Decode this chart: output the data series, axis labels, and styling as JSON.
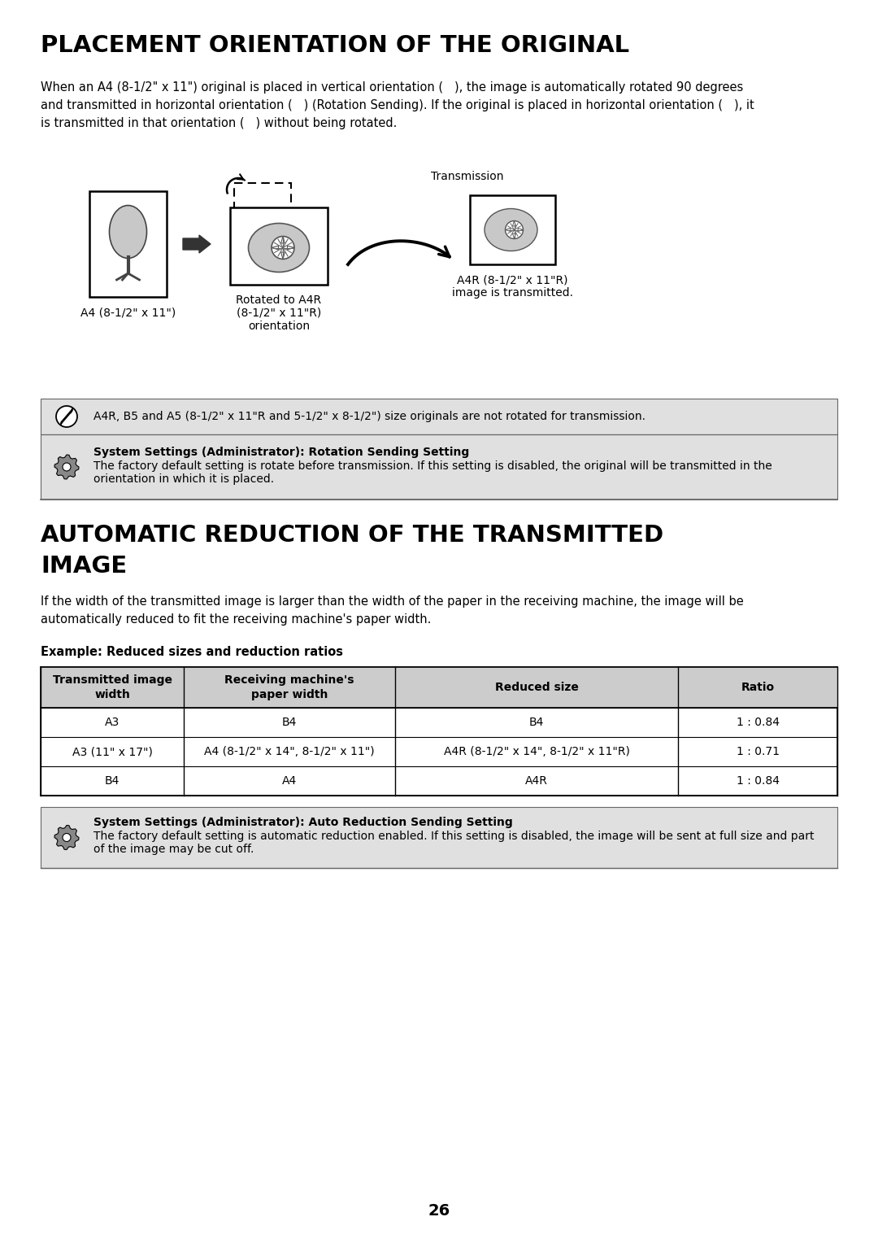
{
  "page_bg": "#ffffff",
  "page_num": "26",
  "section1_title": "PLACEMENT ORIENTATION OF THE ORIGINAL",
  "section1_body_line1": "When an A4 (8-1/2\" x 11\") original is placed in vertical orientation (▤), the image is automatically rotated 90 degrees",
  "section1_body_line2": "and transmitted in horizontal orientation (▤▤) (Rotation Sending). If the original is placed in horizontal orientation (▤▤), it",
  "section1_body_line3": "is transmitted in that orientation (▤▤) without being rotated.",
  "section1_body": "When an A4 (8-1/2\" x 11\") original is placed in vertical orientation (   ), the image is automatically rotated 90 degrees\nand transmitted in horizontal orientation (   ) (Rotation Sending). If the original is placed in horizontal orientation (   ), it\nis transmitted in that orientation (   ) without being rotated.",
  "diagram_label_transmission": "Transmission",
  "diagram_label1": "A4 (8-1/2\" x 11\")",
  "diagram_label2_line1": "Rotated to A4R",
  "diagram_label2_line2": "(8-1/2\" x 11\"R)",
  "diagram_label2_line3": "orientation",
  "diagram_label3_line1": "A4R (8-1/2\" x 11\"R)",
  "diagram_label3_line2": "image is transmitted.",
  "note1_text": "A4R, B5 and A5 (8-1/2\" x 11\"R and 5-1/2\" x 8-1/2\") size originals are not rotated for transmission.",
  "note2_title": "System Settings (Administrator): Rotation Sending Setting",
  "note2_body_line1": "The factory default setting is rotate before transmission. If this setting is disabled, the original will be transmitted in the",
  "note2_body_line2": "orientation in which it is placed.",
  "section2_title_line1": "AUTOMATIC REDUCTION OF THE TRANSMITTED",
  "section2_title_line2": "IMAGE",
  "section2_body": "If the width of the transmitted image is larger than the width of the paper in the receiving machine, the image will be\nautomatically reduced to fit the receiving machine's paper width.",
  "table_label": "Example: Reduced sizes and reduction ratios",
  "table_headers": [
    "Transmitted image\nwidth",
    "Receiving machine's\npaper width",
    "Reduced size",
    "Ratio"
  ],
  "table_rows": [
    [
      "A3",
      "B4",
      "B4",
      "1 : 0.84"
    ],
    [
      "A3 (11\" x 17\")",
      "A4 (8-1/2\" x 14\", 8-1/2\" x 11\")",
      "A4R (8-1/2\" x 14\", 8-1/2\" x 11\"R)",
      "1 : 0.71"
    ],
    [
      "B4",
      "A4",
      "A4R",
      "1 : 0.84"
    ]
  ],
  "note3_title": "System Settings (Administrator): Auto Reduction Sending Setting",
  "note3_body_line1": "The factory default setting is automatic reduction enabled. If this setting is disabled, the image will be sent at full size and part",
  "note3_body_line2": "of the image may be cut off.",
  "note_bg": "#e0e0e0",
  "table_header_bg": "#cccccc",
  "border_color": "#666666",
  "text_color": "#000000"
}
